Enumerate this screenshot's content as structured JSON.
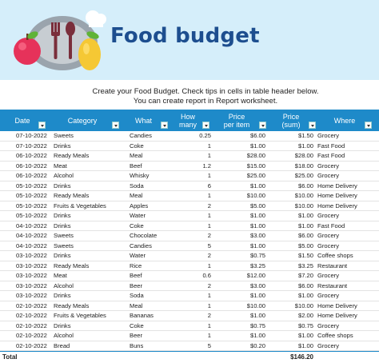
{
  "header": {
    "title": "Food budget"
  },
  "intro": {
    "line1": "Create your Food Budget. Check tips in cells in table header below.",
    "line2": "You can create report in Report worksheet."
  },
  "table": {
    "columns": {
      "date": "Date",
      "category": "Category",
      "what": "What",
      "how_many_1": "How",
      "how_many_2": "many",
      "price_per_item_1": "Price",
      "price_per_item_2": "per item",
      "price_sum_1": "Price",
      "price_sum_2": "(sum)",
      "where": "Where"
    },
    "rows": [
      {
        "date": "07-10-2022",
        "category": "Sweets",
        "what": "Candies",
        "how_many": "0.25",
        "price_per_item": "$6.00",
        "price_sum": "$1.50",
        "where": "Grocery"
      },
      {
        "date": "07-10-2022",
        "category": "Drinks",
        "what": "Coke",
        "how_many": "1",
        "price_per_item": "$1.00",
        "price_sum": "$1.00",
        "where": "Fast Food"
      },
      {
        "date": "06-10-2022",
        "category": "Ready Meals",
        "what": "Meal",
        "how_many": "1",
        "price_per_item": "$28.00",
        "price_sum": "$28.00",
        "where": "Fast Food"
      },
      {
        "date": "06-10-2022",
        "category": "Meat",
        "what": "Beef",
        "how_many": "1.2",
        "price_per_item": "$15.00",
        "price_sum": "$18.00",
        "where": "Grocery"
      },
      {
        "date": "06-10-2022",
        "category": "Alcohol",
        "what": "Whisky",
        "how_many": "1",
        "price_per_item": "$25.00",
        "price_sum": "$25.00",
        "where": "Grocery"
      },
      {
        "date": "05-10-2022",
        "category": "Drinks",
        "what": "Soda",
        "how_many": "6",
        "price_per_item": "$1.00",
        "price_sum": "$6.00",
        "where": "Home Delivery"
      },
      {
        "date": "05-10-2022",
        "category": "Ready Meals",
        "what": "Meal",
        "how_many": "1",
        "price_per_item": "$10.00",
        "price_sum": "$10.00",
        "where": "Home Delivery"
      },
      {
        "date": "05-10-2022",
        "category": "Fruits & Vegetables",
        "what": "Apples",
        "how_many": "2",
        "price_per_item": "$5.00",
        "price_sum": "$10.00",
        "where": "Home Delivery"
      },
      {
        "date": "05-10-2022",
        "category": "Drinks",
        "what": "Water",
        "how_many": "1",
        "price_per_item": "$1.00",
        "price_sum": "$1.00",
        "where": "Grocery"
      },
      {
        "date": "04-10-2022",
        "category": "Drinks",
        "what": "Coke",
        "how_many": "1",
        "price_per_item": "$1.00",
        "price_sum": "$1.00",
        "where": "Fast Food"
      },
      {
        "date": "04-10-2022",
        "category": "Sweets",
        "what": "Chocolate",
        "how_many": "2",
        "price_per_item": "$3.00",
        "price_sum": "$6.00",
        "where": "Grocery"
      },
      {
        "date": "04-10-2022",
        "category": "Sweets",
        "what": "Candies",
        "how_many": "5",
        "price_per_item": "$1.00",
        "price_sum": "$5.00",
        "where": "Grocery"
      },
      {
        "date": "03-10-2022",
        "category": "Drinks",
        "what": "Water",
        "how_many": "2",
        "price_per_item": "$0.75",
        "price_sum": "$1.50",
        "where": "Coffee shops"
      },
      {
        "date": "03-10-2022",
        "category": "Ready Meals",
        "what": "Rice",
        "how_many": "1",
        "price_per_item": "$3.25",
        "price_sum": "$3.25",
        "where": "Restaurant"
      },
      {
        "date": "03-10-2022",
        "category": "Meat",
        "what": "Beef",
        "how_many": "0.6",
        "price_per_item": "$12.00",
        "price_sum": "$7.20",
        "where": "Grocery"
      },
      {
        "date": "03-10-2022",
        "category": "Alcohol",
        "what": "Beer",
        "how_many": "2",
        "price_per_item": "$3.00",
        "price_sum": "$6.00",
        "where": "Restaurant"
      },
      {
        "date": "03-10-2022",
        "category": "Drinks",
        "what": "Soda",
        "how_many": "1",
        "price_per_item": "$1.00",
        "price_sum": "$1.00",
        "where": "Grocery"
      },
      {
        "date": "02-10-2022",
        "category": "Ready Meals",
        "what": "Meal",
        "how_many": "1",
        "price_per_item": "$10.00",
        "price_sum": "$10.00",
        "where": "Home Delivery"
      },
      {
        "date": "02-10-2022",
        "category": "Fruits & Vegetables",
        "what": "Bananas",
        "how_many": "2",
        "price_per_item": "$1.00",
        "price_sum": "$2.00",
        "where": "Home Delivery"
      },
      {
        "date": "02-10-2022",
        "category": "Drinks",
        "what": "Coke",
        "how_many": "1",
        "price_per_item": "$0.75",
        "price_sum": "$0.75",
        "where": "Grocery"
      },
      {
        "date": "02-10-2022",
        "category": "Alcohol",
        "what": "Beer",
        "how_many": "1",
        "price_per_item": "$1.00",
        "price_sum": "$1.00",
        "where": "Coffee shops"
      },
      {
        "date": "02-10-2022",
        "category": "Bread",
        "what": "Buns",
        "how_many": "5",
        "price_per_item": "$0.20",
        "price_sum": "$1.00",
        "where": "Grocery"
      }
    ],
    "total": {
      "label": "Total",
      "value": "$146.20"
    }
  },
  "icons": {
    "logo": "food-illustration-icon",
    "filter": "filter-dropdown-icon"
  },
  "colors": {
    "banner_bg": "#d5eefa",
    "title": "#1d4e8f",
    "header_bg": "#1e8ac9",
    "header_text": "#ffffff"
  }
}
